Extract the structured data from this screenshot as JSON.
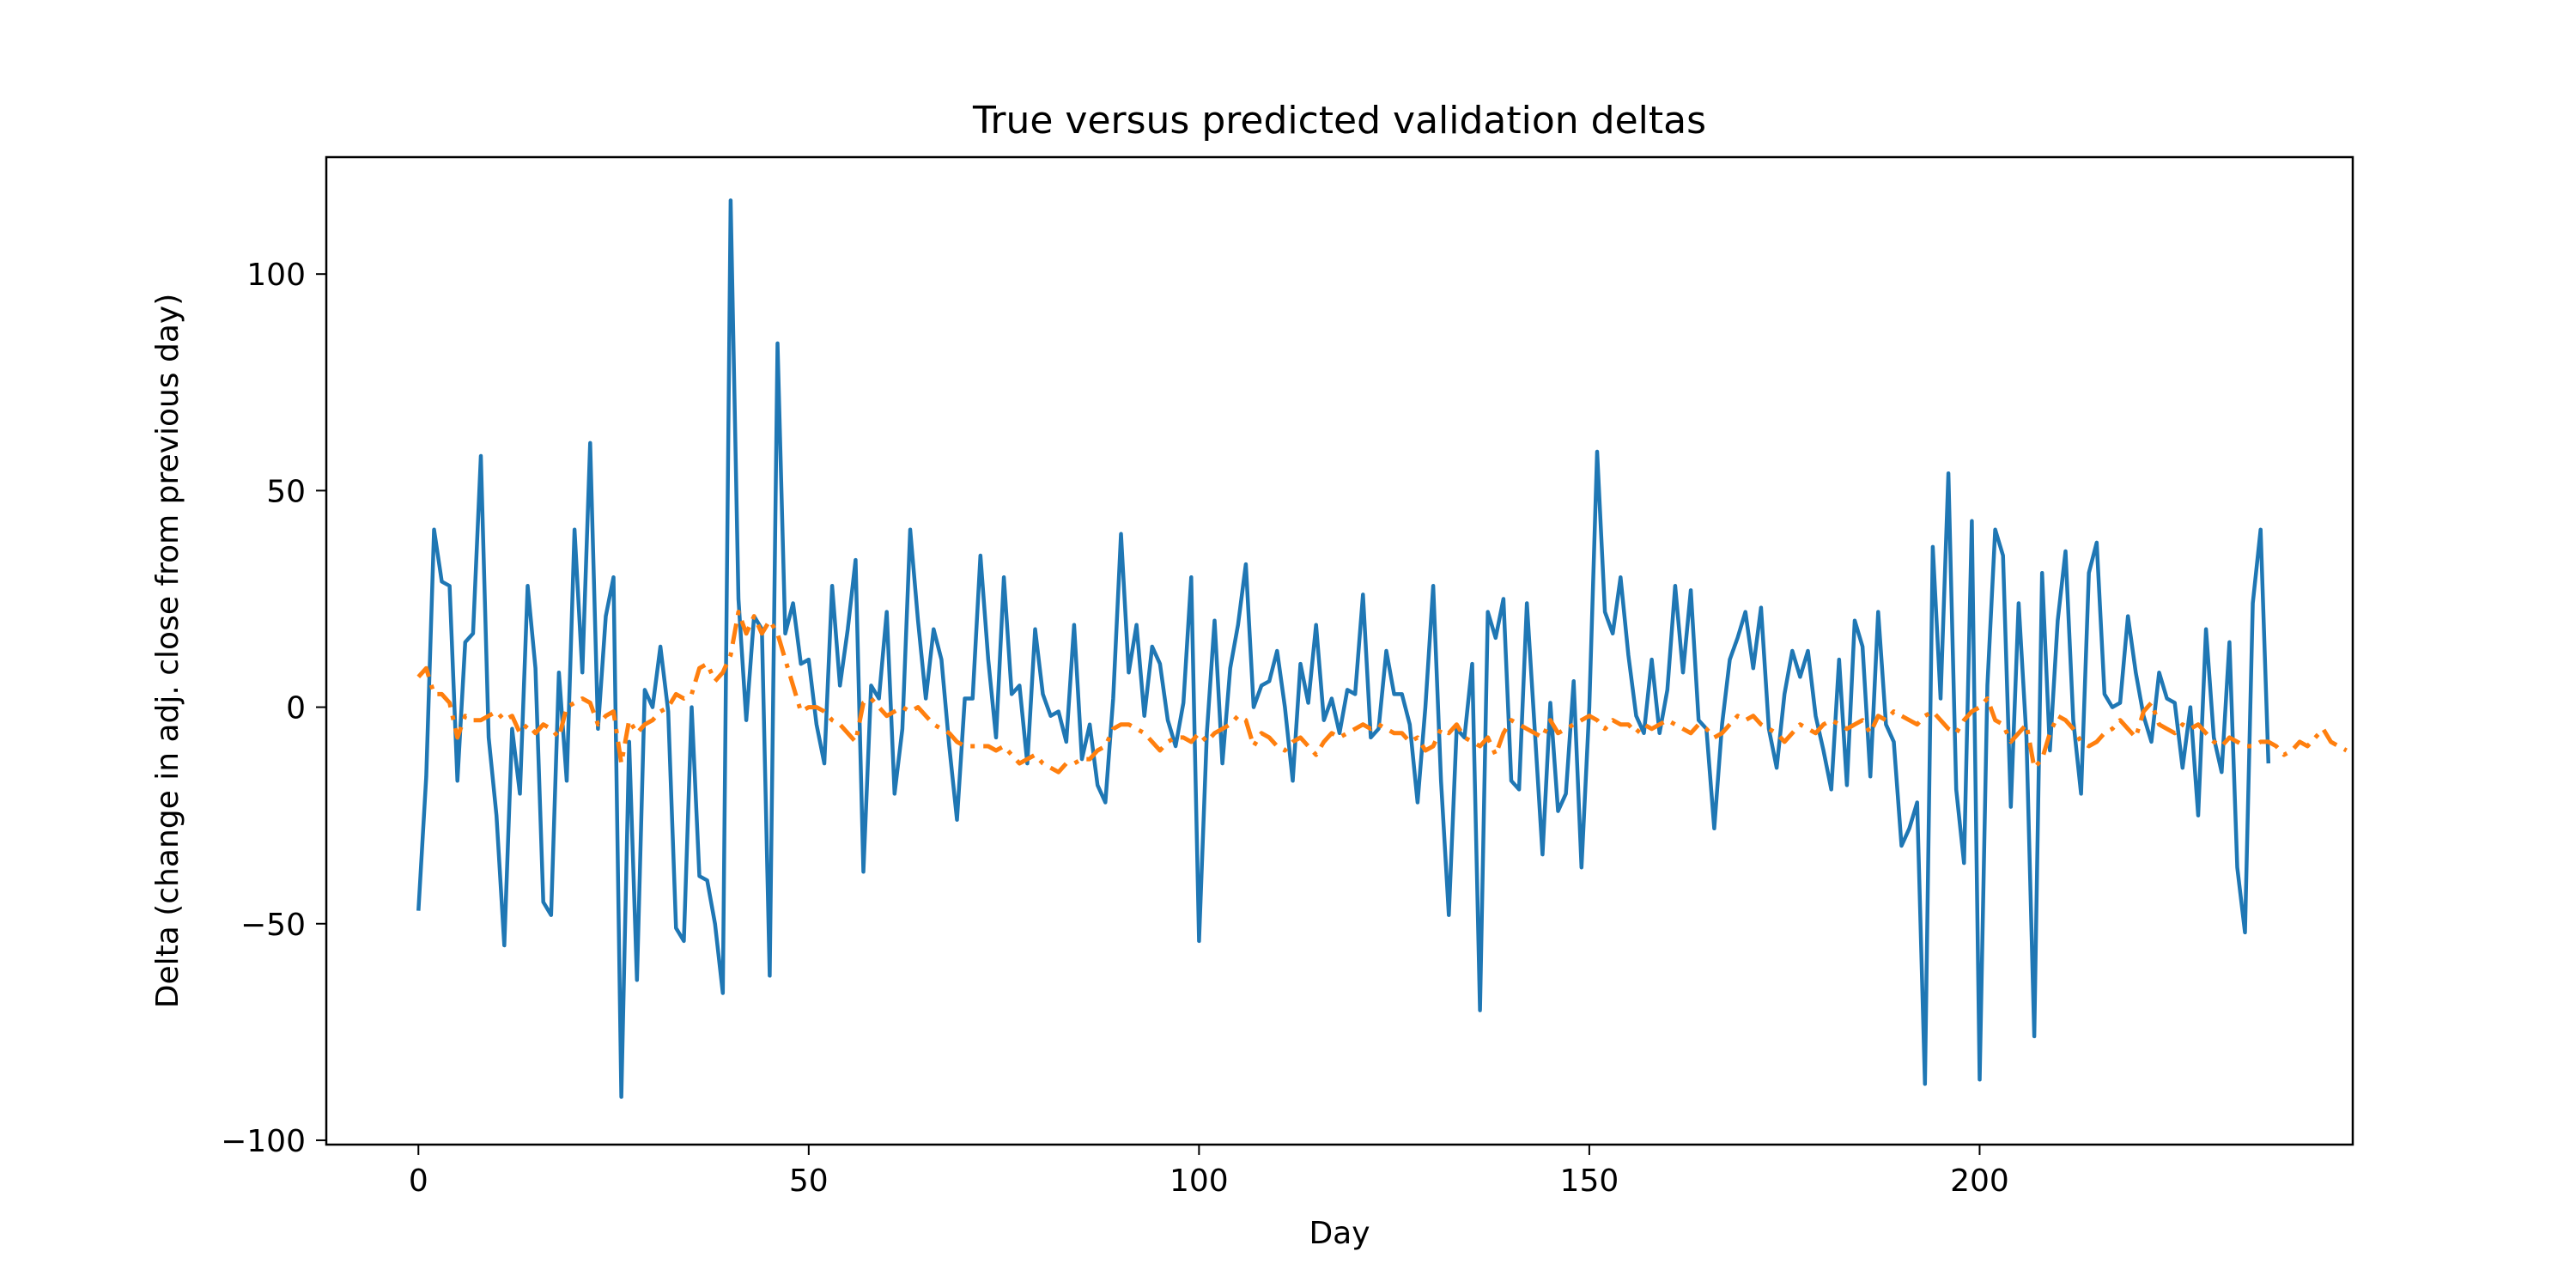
{
  "chart_data": {
    "type": "line",
    "title": "True versus predicted validation deltas",
    "xlabel": "Day",
    "ylabel": "Delta (change in adj. close from previous day)",
    "xlim": [
      -11.8,
      247.8
    ],
    "ylim": [
      -101,
      127
    ],
    "x_ticks": [
      0,
      50,
      100,
      150,
      200
    ],
    "y_ticks": [
      -100,
      -50,
      0,
      50,
      100
    ],
    "x_tick_labels": [
      "0",
      "50",
      "100",
      "150",
      "200"
    ],
    "y_tick_labels": [
      "−100",
      "−50",
      "0",
      "50",
      "100"
    ],
    "grid": false,
    "legend": "none",
    "x_start": 0,
    "x_step": 1,
    "series": [
      {
        "color": "#1f77b4",
        "line_style": "solid",
        "values": [
          -47,
          -16,
          41,
          29,
          28,
          -17,
          15,
          17,
          58,
          -7,
          -25,
          -55,
          -5,
          -20,
          28,
          9,
          -45,
          -48,
          8,
          -17,
          41,
          8,
          61,
          -5,
          21,
          30,
          -90,
          -8,
          -63,
          4,
          0,
          14,
          -1,
          -51,
          -54,
          0,
          -39,
          -40,
          -50,
          -66,
          117,
          25,
          -3,
          21,
          18,
          -62,
          84,
          17,
          24,
          10,
          11,
          -4,
          -13,
          28,
          5,
          18,
          34,
          -38,
          5,
          2,
          22,
          -20,
          -5,
          41,
          20,
          2,
          18,
          11,
          -9,
          -26,
          2,
          2,
          35,
          11,
          -7,
          30,
          3,
          5,
          -13,
          18,
          3,
          -2,
          -1,
          -8,
          19,
          -12,
          -4,
          -18,
          -22,
          2,
          40,
          8,
          19,
          -2,
          14,
          10,
          -3,
          -9,
          1,
          30,
          -54,
          -6,
          20,
          -13,
          9,
          19,
          33,
          0,
          5,
          6,
          13,
          0,
          -17,
          10,
          1,
          19,
          -3,
          2,
          -6,
          4,
          3,
          26,
          -7,
          -5,
          13,
          3,
          3,
          -4,
          -22,
          0,
          28,
          -17,
          -48,
          -5,
          -7,
          10,
          -70,
          22,
          16,
          25,
          -17,
          -19,
          24,
          -5,
          -34,
          1,
          -24,
          -20,
          6,
          -37,
          0,
          59,
          22,
          17,
          30,
          12,
          -2,
          -6,
          11,
          -6,
          4,
          28,
          8,
          27,
          -3,
          -5,
          -28,
          -4,
          11,
          16,
          22,
          9,
          23,
          -5,
          -14,
          3,
          13,
          7,
          13,
          -2,
          -10,
          -19,
          11,
          -18,
          20,
          14,
          -16,
          22,
          -4,
          -8,
          -32,
          -28,
          -22,
          -87,
          37,
          2,
          54,
          -19,
          -36,
          43,
          -86,
          5,
          41,
          35,
          -23,
          24,
          -7,
          -76,
          31,
          -10,
          20,
          36,
          -3,
          -20,
          31,
          38,
          3,
          0,
          1,
          21,
          8,
          -2,
          -8,
          8,
          2,
          1,
          -14,
          0,
          -25,
          18,
          -7,
          -15,
          15,
          -37,
          -52,
          24,
          41,
          -13
        ]
      },
      {
        "color": "#ff7f0e",
        "line_style": "dashdot",
        "values": [
          7,
          9,
          3,
          3,
          1,
          -7,
          -2,
          -3,
          -3,
          -2,
          -1,
          -3,
          -2,
          -6,
          -4,
          -6,
          -4,
          -5,
          -7,
          0,
          1,
          2,
          1,
          -4,
          -2,
          -1,
          -13,
          -3,
          -6,
          -4,
          -3,
          -1,
          0,
          3,
          2,
          3,
          9,
          10,
          6,
          8,
          12,
          22,
          17,
          21,
          17,
          20,
          17,
          11,
          5,
          -1,
          0,
          0,
          -1,
          -3,
          -4,
          -6,
          -8,
          1,
          2,
          0,
          -2,
          -1,
          0,
          -1,
          0,
          -2,
          -4,
          -5,
          -6,
          -8,
          -9,
          -9,
          -9,
          -9,
          -10,
          -9,
          -11,
          -13,
          -12,
          -11,
          -13,
          -14,
          -15,
          -13,
          -13,
          -12,
          -12,
          -10,
          -9,
          -5,
          -4,
          -4,
          -5,
          -6,
          -8,
          -10,
          -8,
          -7,
          -7,
          -8,
          -6,
          -8,
          -6,
          -5,
          -4,
          -2,
          -3,
          -9,
          -6,
          -7,
          -9,
          -10,
          -8,
          -7,
          -9,
          -11,
          -8,
          -6,
          -7,
          -6,
          -5,
          -4,
          -5,
          -4,
          -5,
          -6,
          -6,
          -8,
          -7,
          -10,
          -9,
          -5,
          -6,
          -4,
          -7,
          -8,
          -9,
          -7,
          -11,
          -6,
          -3,
          -4,
          -5,
          -6,
          -7,
          -3,
          -6,
          -5,
          -4,
          -3,
          -2,
          -3,
          -5,
          -3,
          -4,
          -4,
          -6,
          -4,
          -5,
          -4,
          -3,
          -4,
          -5,
          -6,
          -4,
          -5,
          -7,
          -6,
          -4,
          -2,
          -3,
          -2,
          -4,
          -5,
          -6,
          -8,
          -6,
          -4,
          -5,
          -6,
          -4,
          -3,
          -4,
          -5,
          -4,
          -3,
          -6,
          -2,
          -3,
          -1,
          -2,
          -3,
          -4,
          -2,
          -1,
          -3,
          -5,
          -6,
          -3,
          -1,
          0,
          2,
          -3,
          -4,
          -8,
          -6,
          -4,
          -14,
          -12,
          -6,
          -2,
          -3,
          -5,
          -8,
          -9,
          -8,
          -6,
          -5,
          -3,
          -5,
          -7,
          -1,
          1,
          -4,
          -5,
          -6,
          -4,
          -5,
          -4,
          -6,
          -8,
          -9,
          -7,
          -8,
          -9,
          -9,
          -8,
          -8,
          -9,
          -11,
          -10,
          -8,
          -9,
          -7,
          -5,
          -8,
          -9,
          -10
        ]
      }
    ]
  }
}
